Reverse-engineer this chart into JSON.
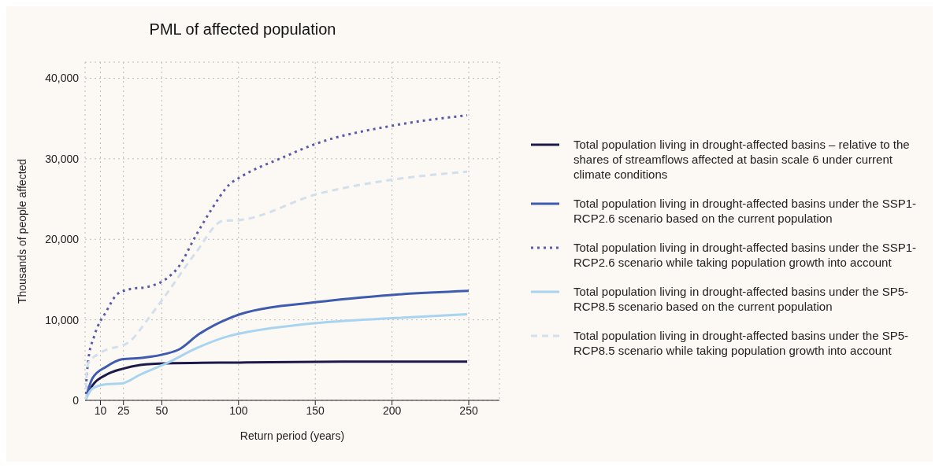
{
  "chart_data": {
    "type": "line",
    "title": "PML of affected population",
    "xlabel": "Return period (years)",
    "ylabel": "Thousands of people affected",
    "xlim": [
      0,
      270
    ],
    "xticks": [
      10,
      25,
      50,
      100,
      150,
      200,
      250
    ],
    "ylim": [
      0,
      42000
    ],
    "yticks": [
      0,
      {
        "value": 10000,
        "label": "10,000"
      },
      {
        "value": 20000,
        "label": "20,000"
      },
      {
        "value": 30000,
        "label": "30,000"
      },
      {
        "value": 40000,
        "label": "40,000"
      }
    ],
    "grid": true,
    "legend": "right",
    "marker": "none",
    "series": [
      {
        "name": "Total population living in drought-affected basins – relative to the shares of streamflows affected at basin scale 6 under current climate conditions",
        "color": "#1c1a4a",
        "line_style": "solid",
        "x": [
          0,
          5,
          14,
          24,
          36,
          53,
          101,
          173,
          249
        ],
        "values": [
          0,
          1900,
          3200,
          3900,
          4400,
          4600,
          4700,
          4800,
          4800
        ]
      },
      {
        "name": "Total population living in drought-affected basins under the SSP1-RCP2.6 scenario based on the current population",
        "color": "#3f5bb0",
        "line_style": "solid",
        "x": [
          0,
          5,
          14,
          24,
          38,
          53,
          61,
          74,
          94,
          101,
          151,
          200,
          250
        ],
        "values": [
          0,
          2800,
          4200,
          5100,
          5300,
          5800,
          6300,
          8200,
          10200,
          10700,
          12200,
          13100,
          13600
        ]
      },
      {
        "name": "Total population living in drought-affected basins under the SSP1-RCP2.6 scenario while taking population growth into account",
        "color": "#5a5ba8",
        "line_style": "dotted",
        "x": [
          0,
          2,
          6,
          14,
          21,
          29,
          41,
          53,
          61,
          72,
          83,
          94,
          101,
          128,
          151,
          200,
          249
        ],
        "values": [
          0,
          4900,
          8000,
          11100,
          13200,
          13800,
          14100,
          15100,
          16600,
          20400,
          23900,
          26800,
          27700,
          30100,
          31900,
          34100,
          35400
        ]
      },
      {
        "name": "Total population living in drought-affected basins under the SP5-RCP8.5 scenario based on the current population",
        "color": "#a8d4f0",
        "line_style": "solid",
        "x": [
          0,
          5,
          14,
          24,
          36,
          53,
          74,
          94,
          101,
          151,
          200,
          249
        ],
        "values": [
          0,
          1500,
          2000,
          2100,
          3200,
          4600,
          6600,
          8000,
          8300,
          9600,
          10200,
          10700
        ]
      },
      {
        "name": "Total population living in drought-affected basins under the SP5-RCP8.5 scenario while taking population growth into account",
        "color": "#d2dfec",
        "line_style": "dashed",
        "x": [
          0,
          2,
          10,
          29,
          41,
          53,
          72,
          90,
          101,
          151,
          200,
          249
        ],
        "values": [
          0,
          4600,
          5900,
          7300,
          10100,
          13200,
          18300,
          22300,
          22400,
          25600,
          27400,
          28400
        ]
      }
    ]
  }
}
